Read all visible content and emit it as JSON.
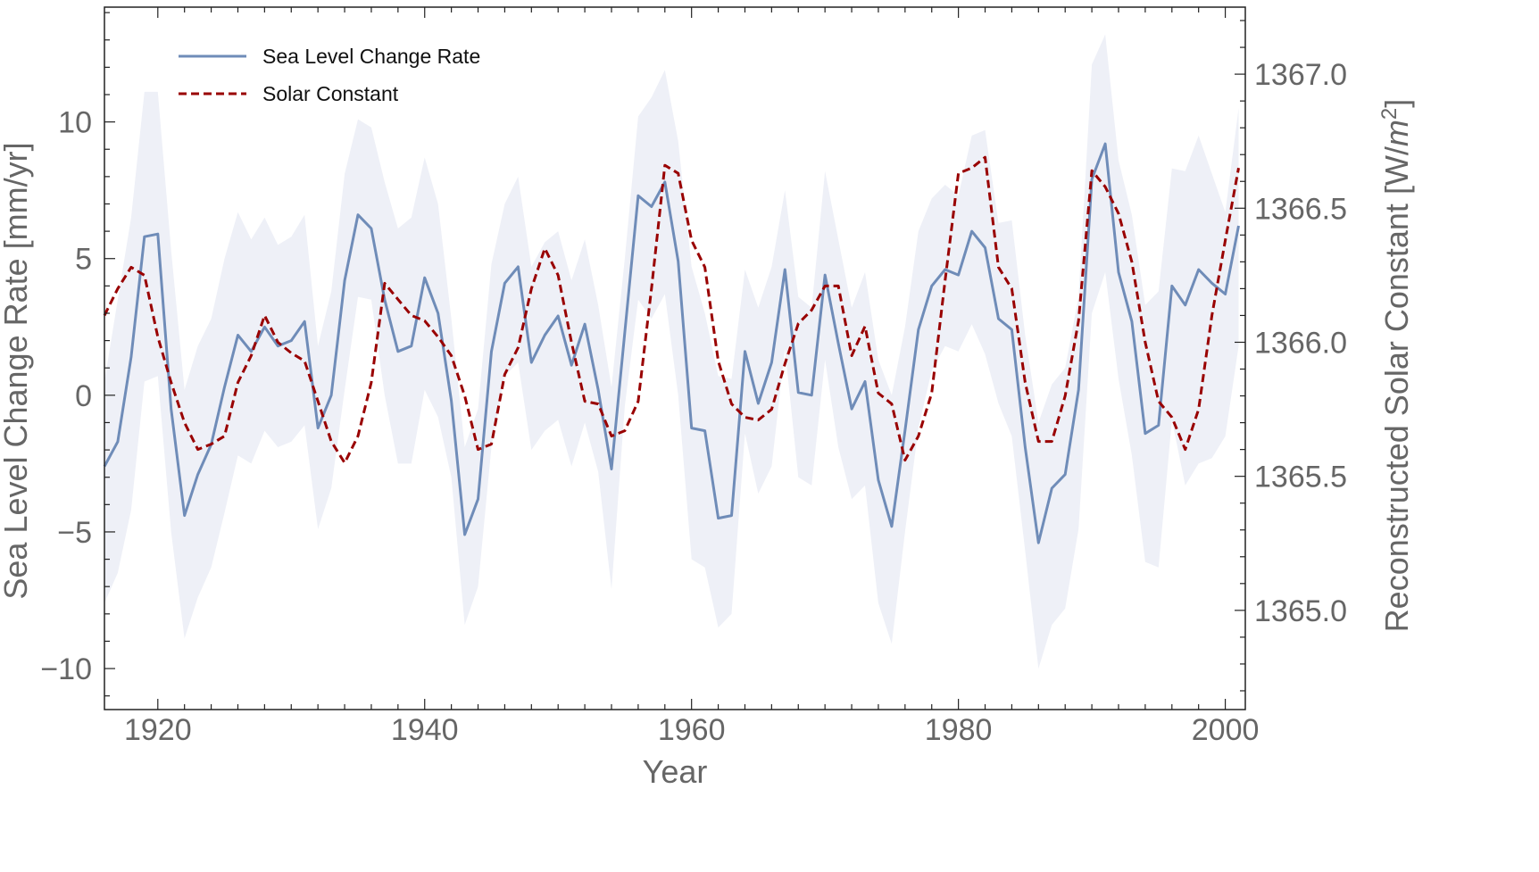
{
  "chart_data": {
    "type": "line",
    "xlabel": "Year",
    "ylabel_left": "Sea Level Change Rate [mm/yr]",
    "ylabel_right_prefix": "Reconstructed Solar Constant [W/",
    "ylabel_right_unit": "m",
    "ylabel_right_exponent": "2",
    "ylabel_right_suffix": "]",
    "xlim": [
      1916,
      2001.5
    ],
    "ylim_left": [
      -11.5,
      14.2
    ],
    "ylim_right": [
      1364.63,
      1367.25
    ],
    "x_ticks": [
      1920,
      1940,
      1960,
      1980,
      2000
    ],
    "x_tick_labels": [
      "1920",
      "1940",
      "1960",
      "1980",
      "2000"
    ],
    "y_left_ticks": [
      -10,
      -5,
      0,
      5,
      10
    ],
    "y_left_tick_labels": [
      "−10",
      "−5",
      "0",
      "5",
      "10"
    ],
    "y_right_ticks": [
      1365.0,
      1365.5,
      1366.0,
      1366.5,
      1367.0
    ],
    "y_right_tick_labels": [
      "1365.0",
      "1365.5",
      "1366.0",
      "1366.5",
      "1367.0"
    ],
    "legend_position": "top-left",
    "grid": false,
    "colors": {
      "sea_level": "#6f8cb8",
      "solar": "#990000",
      "band": "#eef0f7",
      "axis": "#222222",
      "tick_label": "#666666"
    },
    "series": [
      {
        "name": "Sea Level Change Rate",
        "axis": "left",
        "style": "solid",
        "x": [
          1916,
          1917,
          1918,
          1919,
          1920,
          1921,
          1922,
          1923,
          1924,
          1925,
          1926,
          1927,
          1928,
          1929,
          1930,
          1931,
          1932,
          1933,
          1934,
          1935,
          1936,
          1937,
          1938,
          1939,
          1940,
          1941,
          1942,
          1943,
          1944,
          1945,
          1946,
          1947,
          1948,
          1949,
          1950,
          1951,
          1952,
          1953,
          1954,
          1955,
          1956,
          1957,
          1958,
          1959,
          1960,
          1961,
          1962,
          1963,
          1964,
          1965,
          1966,
          1967,
          1968,
          1969,
          1970,
          1971,
          1972,
          1973,
          1974,
          1975,
          1976,
          1977,
          1978,
          1979,
          1980,
          1981,
          1982,
          1983,
          1984,
          1985,
          1986,
          1987,
          1988,
          1989,
          1990,
          1991,
          1992,
          1993,
          1994,
          1995,
          1996,
          1997,
          1998,
          1999,
          2000,
          2001
        ],
        "values": [
          -2.6,
          -1.7,
          1.4,
          5.8,
          5.9,
          -0.5,
          -4.4,
          -2.9,
          -1.8,
          0.3,
          2.2,
          1.6,
          2.5,
          1.8,
          2.0,
          2.7,
          -1.2,
          0.0,
          4.2,
          6.6,
          6.1,
          3.5,
          1.6,
          1.8,
          4.3,
          3.0,
          -0.2,
          -5.1,
          -3.8,
          1.6,
          4.1,
          4.7,
          1.2,
          2.2,
          2.9,
          1.1,
          2.6,
          0.2,
          -2.7,
          2.3,
          7.3,
          6.9,
          7.8,
          4.9,
          -1.2,
          -1.3,
          -4.5,
          -4.4,
          1.6,
          -0.3,
          1.2,
          4.6,
          0.1,
          0.0,
          4.4,
          1.9,
          -0.5,
          0.5,
          -3.1,
          -4.8,
          -1.3,
          2.4,
          4.0,
          4.6,
          4.4,
          6.0,
          5.4,
          2.8,
          2.4,
          -1.9,
          -5.4,
          -3.4,
          -2.9,
          0.2,
          7.9,
          9.2,
          4.5,
          2.7,
          -1.4,
          -1.1,
          4.0,
          3.3,
          4.6,
          4.1,
          3.7,
          6.2
        ],
        "band_upper": [
          0.5,
          3.5,
          6.5,
          11.1,
          11.1,
          5.3,
          0.2,
          1.8,
          2.8,
          5.0,
          6.7,
          5.7,
          6.5,
          5.5,
          5.8,
          6.6,
          1.8,
          3.8,
          8.1,
          10.1,
          9.8,
          7.8,
          6.1,
          6.5,
          8.7,
          7.0,
          2.8,
          -1.9,
          -0.5,
          4.8,
          7.0,
          8.0,
          4.7,
          5.6,
          6.0,
          4.2,
          5.7,
          3.3,
          0.3,
          5.0,
          10.2,
          10.9,
          11.9,
          9.3,
          4.7,
          3.0,
          0.7,
          0.6,
          4.6,
          3.2,
          4.7,
          7.5,
          3.6,
          3.2,
          8.2,
          5.7,
          3.2,
          4.5,
          1.3,
          0.0,
          2.5,
          6.0,
          7.2,
          7.7,
          7.3,
          9.5,
          9.7,
          6.3,
          6.4,
          2.2,
          -1.0,
          0.4,
          1.0,
          3.6,
          12.1,
          13.2,
          8.6,
          6.6,
          3.3,
          3.8,
          8.3,
          8.2,
          9.5,
          8.1,
          6.7,
          10.5
        ],
        "band_lower": [
          -7.6,
          -6.5,
          -4.2,
          0.5,
          0.7,
          -5.0,
          -8.9,
          -7.4,
          -6.3,
          -4.3,
          -2.2,
          -2.5,
          -1.3,
          -1.9,
          -1.7,
          -1.1,
          -4.9,
          -3.4,
          0.2,
          3.6,
          3.5,
          0.0,
          -2.5,
          -2.5,
          0.2,
          -0.8,
          -3.0,
          -8.4,
          -7.0,
          -1.9,
          0.7,
          1.2,
          -2.0,
          -1.3,
          -0.9,
          -2.6,
          -1.0,
          -2.8,
          -7.1,
          -0.4,
          3.5,
          2.8,
          3.7,
          0.0,
          -6.0,
          -6.3,
          -8.5,
          -8.0,
          -1.4,
          -3.6,
          -2.6,
          1.7,
          -3.0,
          -3.3,
          1.3,
          -1.9,
          -3.8,
          -3.3,
          -7.6,
          -9.1,
          -5.0,
          -1.2,
          0.9,
          1.8,
          1.6,
          2.6,
          1.5,
          -0.3,
          -1.5,
          -5.7,
          -10.0,
          -8.4,
          -7.8,
          -4.9,
          3.0,
          4.5,
          0.6,
          -2.2,
          -6.1,
          -6.3,
          -0.9,
          -3.3,
          -2.5,
          -2.3,
          -1.5,
          1.8
        ]
      },
      {
        "name": "Solar Constant",
        "axis": "right",
        "style": "dashed",
        "x": [
          1916,
          1917,
          1918,
          1919,
          1920,
          1921,
          1922,
          1923,
          1924,
          1925,
          1926,
          1927,
          1928,
          1929,
          1930,
          1931,
          1932,
          1933,
          1934,
          1935,
          1936,
          1937,
          1938,
          1939,
          1940,
          1941,
          1942,
          1943,
          1944,
          1945,
          1946,
          1947,
          1948,
          1949,
          1950,
          1951,
          1952,
          1953,
          1954,
          1955,
          1956,
          1957,
          1958,
          1959,
          1960,
          1961,
          1962,
          1963,
          1964,
          1965,
          1966,
          1967,
          1968,
          1969,
          1970,
          1971,
          1972,
          1973,
          1974,
          1975,
          1976,
          1977,
          1978,
          1979,
          1980,
          1981,
          1982,
          1983,
          1984,
          1985,
          1986,
          1987,
          1988,
          1989,
          1990,
          1991,
          1992,
          1993,
          1994,
          1995,
          1996,
          1997,
          1998,
          1999,
          2000,
          2001
        ],
        "values": [
          1366.1,
          1366.2,
          1366.28,
          1366.25,
          1366.02,
          1365.85,
          1365.7,
          1365.6,
          1365.62,
          1365.65,
          1365.85,
          1365.95,
          1366.1,
          1366.0,
          1365.96,
          1365.93,
          1365.78,
          1365.63,
          1365.55,
          1365.65,
          1365.85,
          1366.22,
          1366.16,
          1366.1,
          1366.08,
          1366.02,
          1365.95,
          1365.8,
          1365.6,
          1365.62,
          1365.88,
          1365.98,
          1366.2,
          1366.35,
          1366.25,
          1366.0,
          1365.78,
          1365.77,
          1365.65,
          1365.67,
          1365.78,
          1366.2,
          1366.66,
          1366.63,
          1366.38,
          1366.28,
          1365.93,
          1365.77,
          1365.72,
          1365.71,
          1365.75,
          1365.92,
          1366.07,
          1366.12,
          1366.21,
          1366.21,
          1365.95,
          1366.06,
          1365.81,
          1365.77,
          1365.56,
          1365.65,
          1365.81,
          1366.23,
          1366.63,
          1366.65,
          1366.69,
          1366.28,
          1366.2,
          1365.85,
          1365.63,
          1365.63,
          1365.8,
          1366.08,
          1366.64,
          1366.58,
          1366.48,
          1366.3,
          1366.0,
          1365.78,
          1365.72,
          1365.6,
          1365.75,
          1366.1,
          1366.38,
          1366.65
        ]
      }
    ]
  }
}
